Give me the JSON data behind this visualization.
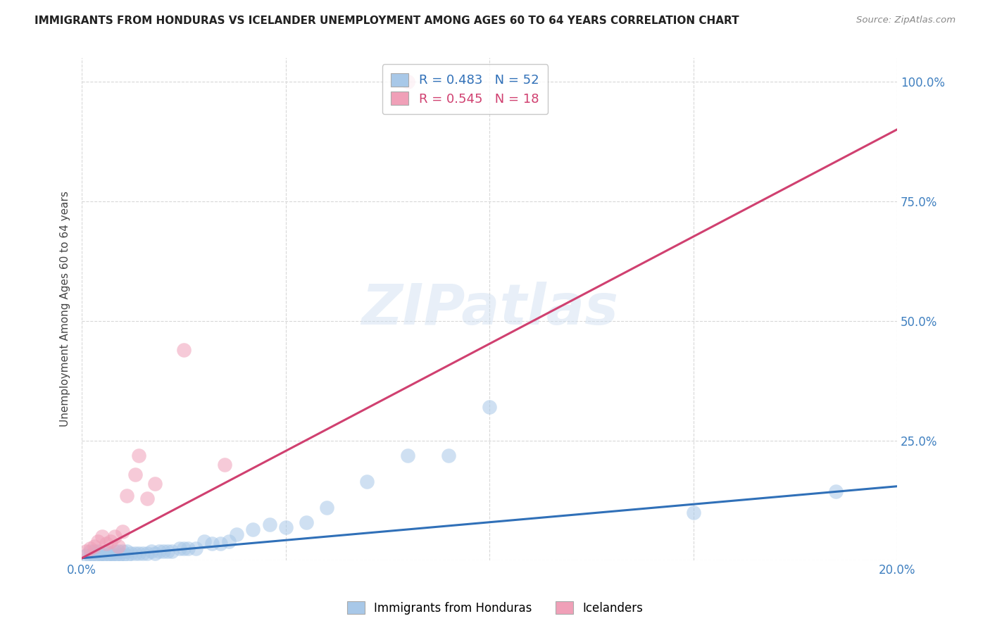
{
  "title": "IMMIGRANTS FROM HONDURAS VS ICELANDER UNEMPLOYMENT AMONG AGES 60 TO 64 YEARS CORRELATION CHART",
  "source": "Source: ZipAtlas.com",
  "ylabel": "Unemployment Among Ages 60 to 64 years",
  "watermark": "ZIPatlas",
  "blue_color": "#a8c8e8",
  "pink_color": "#f0a0b8",
  "blue_line_color": "#3070b8",
  "pink_line_color": "#d04070",
  "background_color": "#ffffff",
  "grid_color": "#d8d8d8",
  "legend_label_blue": "Immigrants from Honduras",
  "legend_label_pink": "Icelanders",
  "legend_r_blue": "R = 0.483",
  "legend_n_blue": "N = 52",
  "legend_r_pink": "R = 0.545",
  "legend_n_pink": "N = 18",
  "blue_scatter_x": [
    0.001,
    0.002,
    0.002,
    0.003,
    0.003,
    0.004,
    0.004,
    0.005,
    0.005,
    0.006,
    0.006,
    0.007,
    0.007,
    0.008,
    0.008,
    0.009,
    0.009,
    0.01,
    0.01,
    0.011,
    0.011,
    0.012,
    0.013,
    0.014,
    0.015,
    0.016,
    0.017,
    0.018,
    0.019,
    0.02,
    0.021,
    0.022,
    0.024,
    0.025,
    0.026,
    0.028,
    0.03,
    0.032,
    0.034,
    0.036,
    0.038,
    0.042,
    0.046,
    0.05,
    0.055,
    0.06,
    0.07,
    0.08,
    0.09,
    0.1,
    0.15,
    0.185
  ],
  "blue_scatter_y": [
    0.01,
    0.01,
    0.02,
    0.01,
    0.02,
    0.01,
    0.02,
    0.01,
    0.015,
    0.01,
    0.02,
    0.01,
    0.015,
    0.01,
    0.02,
    0.01,
    0.02,
    0.01,
    0.02,
    0.01,
    0.02,
    0.015,
    0.015,
    0.015,
    0.015,
    0.015,
    0.02,
    0.015,
    0.02,
    0.02,
    0.02,
    0.02,
    0.025,
    0.025,
    0.025,
    0.025,
    0.04,
    0.035,
    0.035,
    0.04,
    0.055,
    0.065,
    0.075,
    0.07,
    0.08,
    0.11,
    0.165,
    0.22,
    0.22,
    0.32,
    0.1,
    0.145
  ],
  "pink_scatter_x": [
    0.001,
    0.002,
    0.003,
    0.004,
    0.005,
    0.006,
    0.007,
    0.008,
    0.009,
    0.01,
    0.011,
    0.013,
    0.014,
    0.016,
    0.018,
    0.025,
    0.035,
    0.08
  ],
  "pink_scatter_y": [
    0.02,
    0.025,
    0.03,
    0.04,
    0.05,
    0.035,
    0.04,
    0.05,
    0.03,
    0.06,
    0.135,
    0.18,
    0.22,
    0.13,
    0.16,
    0.44,
    0.2,
    1.0
  ],
  "blue_line_x": [
    0.0,
    0.2
  ],
  "blue_line_y": [
    0.005,
    0.155
  ],
  "pink_line_x": [
    0.0,
    0.2
  ],
  "pink_line_y": [
    0.005,
    0.9
  ],
  "xlim": [
    0.0,
    0.2
  ],
  "ylim": [
    0.0,
    1.05
  ],
  "yticks": [
    0.0,
    0.25,
    0.5,
    0.75,
    1.0
  ],
  "ytick_labels_right": [
    "",
    "25.0%",
    "50.0%",
    "75.0%",
    "100.0%"
  ],
  "xticks": [
    0.0,
    0.05,
    0.1,
    0.15,
    0.2
  ],
  "xtick_labels": [
    "0.0%",
    "",
    "",
    "",
    "20.0%"
  ],
  "tick_color": "#4080c0",
  "title_fontsize": 11,
  "ylabel_fontsize": 11,
  "tick_fontsize": 12
}
